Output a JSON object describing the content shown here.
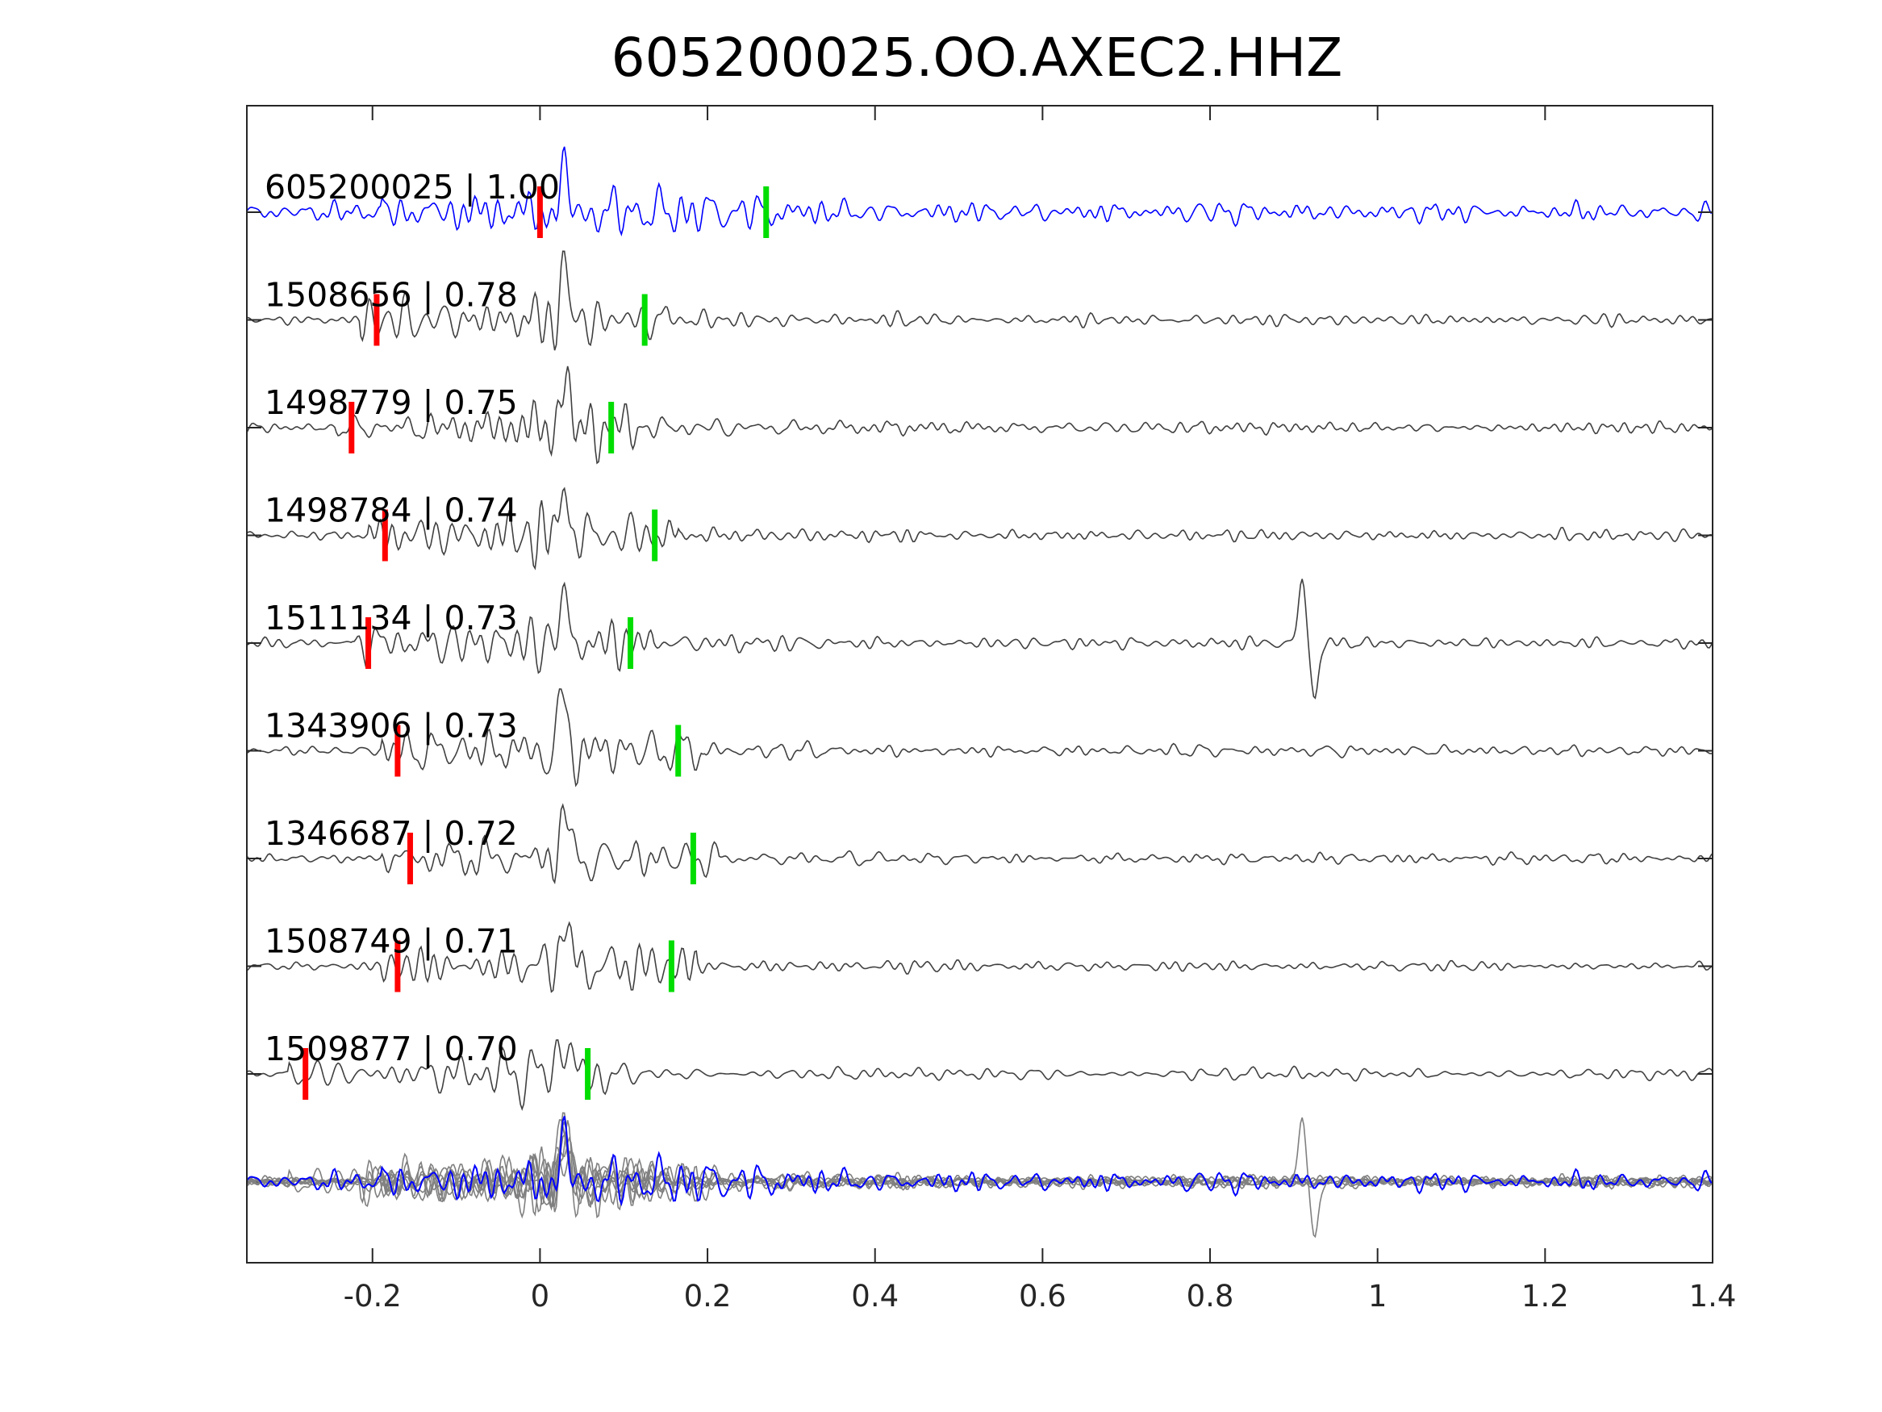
{
  "chart_data": {
    "type": "line",
    "title": "605200025.OO.AXEC2.HHZ",
    "xlabel": "",
    "ylabel": "",
    "xlim": [
      -0.35,
      1.4
    ],
    "x_ticks": [
      -0.2,
      0,
      0.2,
      0.4,
      0.6,
      0.8,
      1,
      1.2,
      1.4
    ],
    "x_tick_labels": [
      "-0.2",
      "0",
      "0.2",
      "0.4",
      "0.6",
      "0.8",
      "1",
      "1.2",
      "1.4"
    ],
    "grid": false,
    "colors": {
      "master": "#0000ff",
      "trace": "#404040",
      "overlay": "#808080",
      "p_pick": "#ff0000",
      "s_pick": "#00dd00"
    },
    "traces": [
      {
        "label": "605200025 | 1.00",
        "p_pick": 0.0,
        "s_pick": 0.27,
        "master": true
      },
      {
        "label": "1508656 | 0.78",
        "p_pick": -0.195,
        "s_pick": 0.125
      },
      {
        "label": "1498779 | 0.75",
        "p_pick": -0.225,
        "s_pick": 0.085
      },
      {
        "label": "1498784 | 0.74",
        "p_pick": -0.185,
        "s_pick": 0.137
      },
      {
        "label": "1511134 | 0.73",
        "p_pick": -0.205,
        "s_pick": 0.108
      },
      {
        "label": "1343906 | 0.73",
        "p_pick": -0.17,
        "s_pick": 0.165
      },
      {
        "label": "1346687 | 0.72",
        "p_pick": -0.155,
        "s_pick": 0.183
      },
      {
        "label": "1508749 | 0.71",
        "p_pick": -0.17,
        "s_pick": 0.157
      },
      {
        "label": "1509877 | 0.70",
        "p_pick": -0.28,
        "s_pick": 0.057
      }
    ]
  }
}
